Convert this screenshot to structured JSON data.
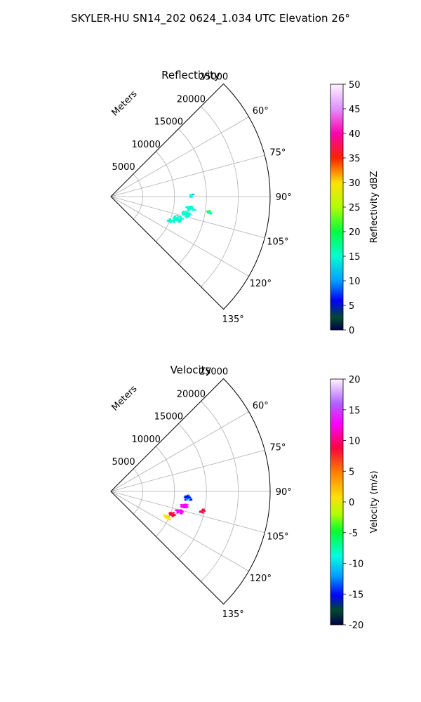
{
  "figure": {
    "suptitle": "SKYLER-HU  SN14_202  0624_1.034 UTC Elevation 26°"
  },
  "chart_data": [
    {
      "type": "scatter",
      "title": "Reflectivity",
      "polar": true,
      "r_label": "Meters",
      "r_ticks": [
        "5000",
        "10000",
        "15000",
        "20000",
        "25000"
      ],
      "r_range": [
        0,
        25000
      ],
      "theta_range": [
        45,
        135
      ],
      "theta_ticks": [
        "60°",
        "75°",
        "90°",
        "105°",
        "120°",
        "135°"
      ],
      "theta_values": [
        60,
        75,
        90,
        105,
        120,
        135
      ],
      "colorbar": {
        "label": "Reflectivity dBZ",
        "range": [
          0,
          50
        ],
        "ticks": [
          "0",
          "5",
          "10",
          "15",
          "20",
          "25",
          "30",
          "35",
          "40",
          "45",
          "50"
        ]
      },
      "clusters": [
        {
          "theta": 98,
          "r": 12500,
          "value": 17,
          "spread_r": 900,
          "spread_t": 2.5,
          "count": 40
        },
        {
          "theta": 103,
          "r": 12000,
          "value": 18,
          "spread_r": 900,
          "spread_t": 3,
          "count": 40
        },
        {
          "theta": 108,
          "r": 11000,
          "value": 18,
          "spread_r": 1100,
          "spread_t": 3,
          "count": 40
        },
        {
          "theta": 112,
          "r": 10000,
          "value": 17,
          "spread_r": 900,
          "spread_t": 2,
          "count": 30
        },
        {
          "theta": 99,
          "r": 15500,
          "value": 20,
          "spread_r": 500,
          "spread_t": 1.5,
          "count": 10
        },
        {
          "theta": 89,
          "r": 12500,
          "value": 16,
          "spread_r": 500,
          "spread_t": 2,
          "count": 8
        }
      ]
    },
    {
      "type": "scatter",
      "title": "Velocity",
      "polar": true,
      "r_label": "Meters",
      "r_ticks": [
        "5000",
        "10000",
        "15000",
        "20000",
        "25000"
      ],
      "r_range": [
        0,
        25000
      ],
      "theta_range": [
        45,
        135
      ],
      "theta_ticks": [
        "60°",
        "75°",
        "90°",
        "105°",
        "120°",
        "135°"
      ],
      "theta_values": [
        60,
        75,
        90,
        105,
        120,
        135
      ],
      "colorbar": {
        "label": "Velocity (m/s)",
        "range": [
          -20,
          20
        ],
        "ticks": [
          "-20",
          "-15",
          "-10",
          "-5",
          "0",
          "5",
          "10",
          "15",
          "20"
        ]
      },
      "clusters": [
        {
          "theta": 94,
          "r": 12000,
          "value": -12,
          "spread_r": 800,
          "spread_t": 3,
          "count": 40
        },
        {
          "theta": 101,
          "r": 11500,
          "value": 15,
          "spread_r": 900,
          "spread_t": 2.5,
          "count": 35
        },
        {
          "theta": 106,
          "r": 11000,
          "value": 15,
          "spread_r": 800,
          "spread_t": 2.5,
          "count": 30
        },
        {
          "theta": 110,
          "r": 10000,
          "value": 10,
          "spread_r": 800,
          "spread_t": 2,
          "count": 30
        },
        {
          "theta": 114,
          "r": 9500,
          "value": 3,
          "spread_r": 700,
          "spread_t": 2,
          "count": 25
        },
        {
          "theta": 102,
          "r": 14500,
          "value": 10,
          "spread_r": 600,
          "spread_t": 2,
          "count": 15
        }
      ]
    }
  ]
}
